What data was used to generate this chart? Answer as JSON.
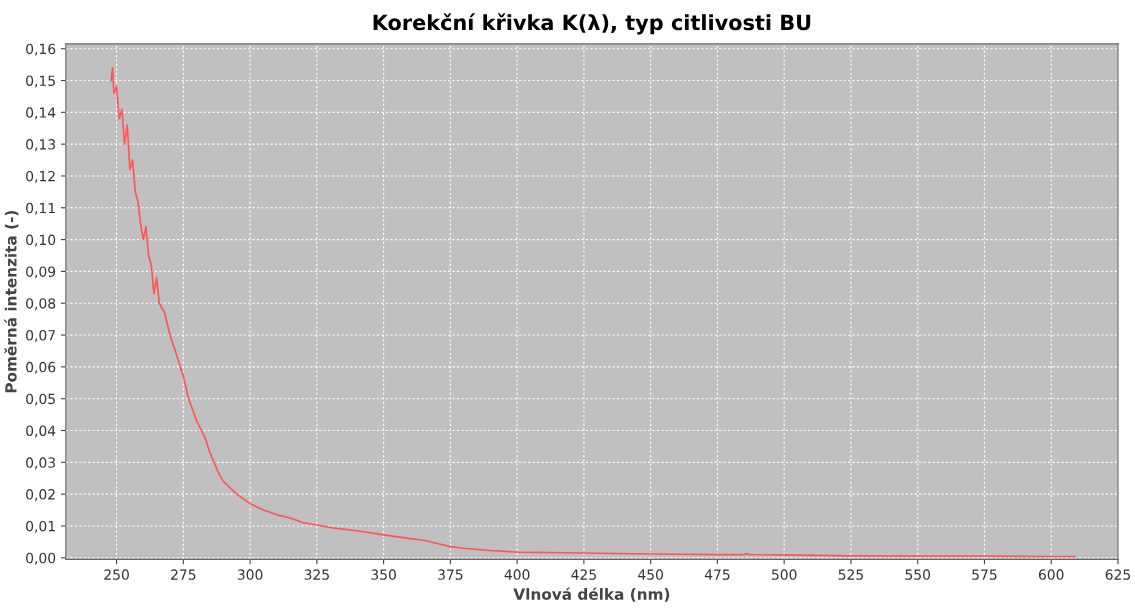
{
  "chart_data": {
    "type": "line",
    "title": "Korekční křivka K(λ), typ citlivosti BU",
    "xlabel": "Vlnová délka (nm)",
    "ylabel": "Poměrná intenzita (-)",
    "series": [
      {
        "color": "#ff5555",
        "x": [
          248,
          248.5,
          249,
          250,
          251,
          252,
          253,
          254,
          255,
          256,
          257,
          258,
          259,
          260,
          261,
          262,
          263,
          264,
          265,
          266,
          268,
          270,
          272,
          275,
          277,
          280,
          283,
          285,
          288,
          290,
          295,
          300,
          305,
          310,
          315,
          320,
          325,
          330,
          340,
          350,
          360,
          365,
          370,
          375,
          380,
          390,
          400,
          425,
          450,
          475,
          485,
          486,
          487,
          500,
          525,
          550,
          575,
          600,
          609
        ],
        "values": [
          0.15,
          0.154,
          0.146,
          0.148,
          0.138,
          0.141,
          0.13,
          0.136,
          0.122,
          0.125,
          0.115,
          0.112,
          0.105,
          0.1,
          0.104,
          0.095,
          0.092,
          0.083,
          0.088,
          0.08,
          0.077,
          0.07,
          0.065,
          0.057,
          0.05,
          0.043,
          0.038,
          0.033,
          0.027,
          0.024,
          0.02,
          0.017,
          0.015,
          0.0135,
          0.0125,
          0.011,
          0.0103,
          0.0095,
          0.0085,
          0.0072,
          0.006,
          0.0055,
          0.0045,
          0.0035,
          0.003,
          0.0023,
          0.0018,
          0.0015,
          0.0012,
          0.001,
          0.001,
          0.0013,
          0.001,
          0.0009,
          0.0006,
          0.0005,
          0.0005,
          0.0004,
          0.0004
        ]
      }
    ],
    "xlim": [
      231,
      625
    ],
    "xticks": [
      250,
      275,
      300,
      325,
      350,
      375,
      400,
      425,
      450,
      475,
      500,
      525,
      550,
      575,
      600,
      625
    ],
    "ylim": [
      -0.0005,
      0.1615
    ],
    "yticks": [
      {
        "value": 0,
        "label": "0,00"
      },
      {
        "value": 0.01,
        "label": "0,01"
      },
      {
        "value": 0.02,
        "label": "0,02"
      },
      {
        "value": 0.03,
        "label": "0,03"
      },
      {
        "value": 0.04,
        "label": "0,04"
      },
      {
        "value": 0.05,
        "label": "0,05"
      },
      {
        "value": 0.06,
        "label": "0,06"
      },
      {
        "value": 0.07,
        "label": "0,07"
      },
      {
        "value": 0.08,
        "label": "0,08"
      },
      {
        "value": 0.09,
        "label": "0,09"
      },
      {
        "value": 0.1,
        "label": "0,10"
      },
      {
        "value": 0.11,
        "label": "0,11"
      },
      {
        "value": 0.12,
        "label": "0,12"
      },
      {
        "value": 0.13,
        "label": "0,13"
      },
      {
        "value": 0.14,
        "label": "0,14"
      },
      {
        "value": 0.15,
        "label": "0,15"
      },
      {
        "value": 0.16,
        "label": "0,16"
      }
    ],
    "grid": true
  }
}
